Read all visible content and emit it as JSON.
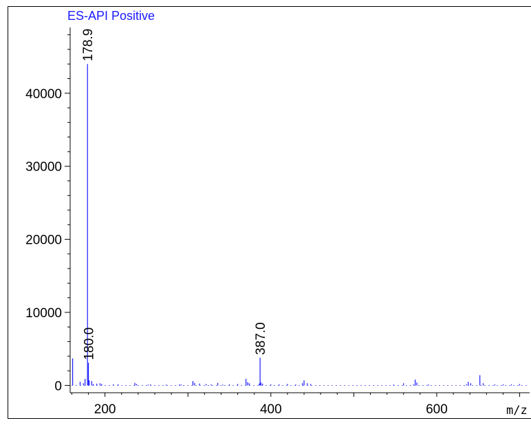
{
  "chart_data": {
    "type": "bar",
    "title": "ES-API Positive",
    "xlabel": "m/z",
    "ylabel": "",
    "xlim": [
      158,
      712
    ],
    "ylim": [
      -1000,
      49000
    ],
    "x_ticks": [
      200,
      400,
      600
    ],
    "y_ticks": [
      0,
      10000,
      20000,
      30000,
      40000
    ],
    "colors": {
      "series": "#1a1aff",
      "title": "#1a1aff",
      "axis": "#000000"
    },
    "series": [
      {
        "x": [
          161,
          170,
          174,
          176,
          178.9,
          180.0,
          181,
          184,
          186,
          190,
          194,
          196,
          210,
          216,
          236,
          238,
          252,
          255,
          274,
          290,
          292,
          306,
          308,
          314,
          322,
          328,
          336,
          342,
          350,
          360,
          370,
          372,
          374,
          386,
          387.0,
          388,
          390,
          400,
          410,
          420,
          430,
          438,
          440,
          444,
          448,
          548,
          560,
          572,
          574,
          576,
          590,
          636,
          638,
          641,
          652,
          656,
          670,
          680,
          690,
          700
        ],
        "values": [
          3700,
          500,
          300,
          900,
          44000,
          3100,
          700,
          600,
          200,
          250,
          300,
          200,
          150,
          150,
          350,
          200,
          120,
          150,
          120,
          150,
          120,
          600,
          350,
          250,
          200,
          150,
          350,
          120,
          150,
          200,
          900,
          450,
          300,
          250,
          3800,
          400,
          250,
          150,
          150,
          200,
          150,
          300,
          700,
          300,
          200,
          120,
          300,
          150,
          800,
          400,
          150,
          150,
          500,
          300,
          1400,
          300,
          150,
          150,
          150,
          200
        ]
      }
    ],
    "labels": [
      {
        "x": 178.9,
        "y": 44000,
        "text": "178.9"
      },
      {
        "x": 180.0,
        "y": 3100,
        "text": "180.0"
      },
      {
        "x": 387.0,
        "y": 3800,
        "text": "387.0"
      }
    ]
  }
}
